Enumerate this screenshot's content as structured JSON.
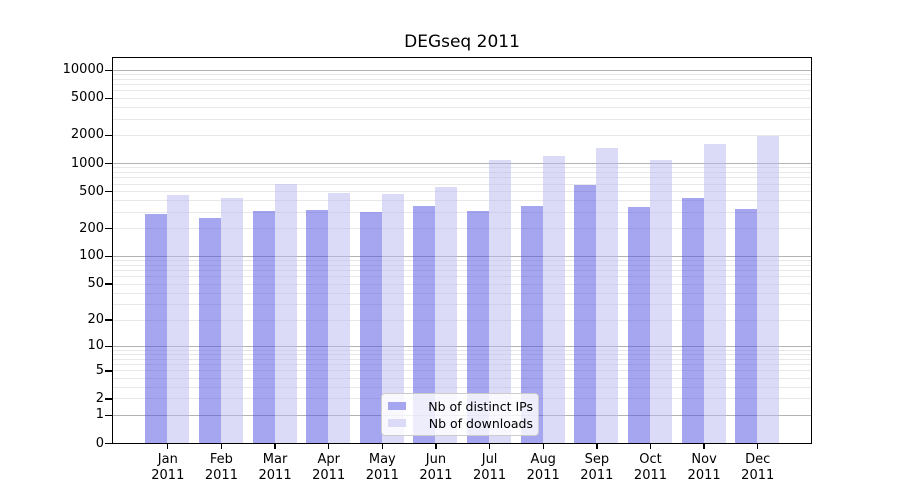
{
  "title": "DEGseq 2011",
  "chart_data": {
    "type": "bar",
    "title": "DEGseq 2011",
    "y_scale": "log10(value+1)",
    "ylim": [
      0,
      10000
    ],
    "grid": true,
    "legend_position": "bottom-center",
    "categories": [
      {
        "month": "Jan",
        "year": "2011"
      },
      {
        "month": "Feb",
        "year": "2011"
      },
      {
        "month": "Mar",
        "year": "2011"
      },
      {
        "month": "Apr",
        "year": "2011"
      },
      {
        "month": "May",
        "year": "2011"
      },
      {
        "month": "Jun",
        "year": "2011"
      },
      {
        "month": "Jul",
        "year": "2011"
      },
      {
        "month": "Aug",
        "year": "2011"
      },
      {
        "month": "Sep",
        "year": "2011"
      },
      {
        "month": "Oct",
        "year": "2011"
      },
      {
        "month": "Nov",
        "year": "2011"
      },
      {
        "month": "Dec",
        "year": "2011"
      }
    ],
    "series": [
      {
        "name": "Nb of distinct IPs",
        "color": "#a6a6f0",
        "values": [
          286,
          259,
          305,
          315,
          298,
          350,
          305,
          345,
          585,
          334,
          417,
          324
        ]
      },
      {
        "name": "Nb of downloads",
        "color": "#dbdbf8",
        "values": [
          450,
          425,
          592,
          480,
          470,
          550,
          1090,
          1200,
          1460,
          1090,
          1610,
          1940
        ]
      }
    ],
    "y_ticks": [
      0,
      1,
      2,
      5,
      10,
      20,
      50,
      100,
      200,
      500,
      1000,
      2000,
      5000,
      10000
    ],
    "grid_major_ticks": [
      1,
      10,
      100,
      1000,
      10000
    ],
    "grid_major_color": "#b3b3b3",
    "grid_minor_color": "#e8e8e8",
    "axis_color": "#000000"
  }
}
